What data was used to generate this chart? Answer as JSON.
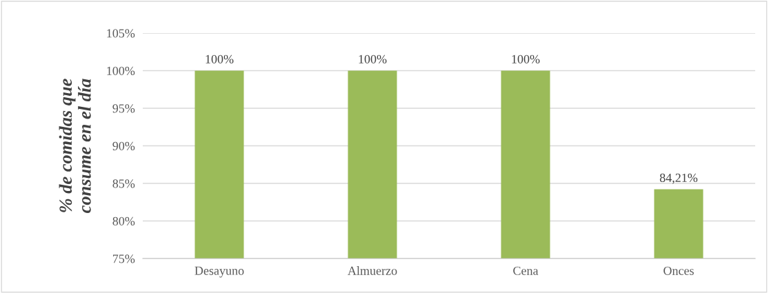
{
  "chart_data": {
    "type": "bar",
    "ylabel": "% de comidas que\nconsume en el día",
    "categories": [
      "Desayuno",
      "Almuerzo",
      "Cena",
      "Onces"
    ],
    "values": [
      100,
      100,
      100,
      84.21
    ],
    "color": "#9bbb59",
    "value_labels": [
      "100%",
      "100%",
      "100%",
      "84,21%"
    ],
    "ylim": [
      75,
      105
    ],
    "yticks": [
      {
        "value": 75,
        "label": "75%"
      },
      {
        "value": 80,
        "label": "80%"
      },
      {
        "value": 85,
        "label": "85%"
      },
      {
        "value": 90,
        "label": "90%"
      },
      {
        "value": 95,
        "label": "95%"
      },
      {
        "value": 100,
        "label": "100%"
      },
      {
        "value": 105,
        "label": "105%"
      }
    ],
    "grid": "y"
  }
}
